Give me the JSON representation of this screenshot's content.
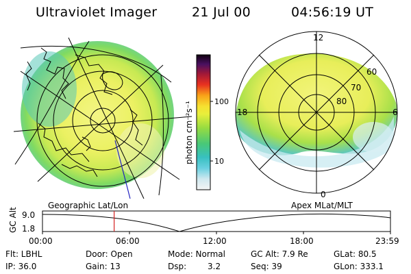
{
  "header": {
    "title": "Ultraviolet Imager",
    "date": "21 Jul 00",
    "time": "04:56:19 UT"
  },
  "colorbar": {
    "title": "photon cm⁻²s⁻¹",
    "ticks": [
      "100",
      "10"
    ]
  },
  "left_panel": {
    "label": "Geographic Lat/Lon"
  },
  "right_panel": {
    "label": "Apex MLat/MLT",
    "mlt_labels": {
      "top": "12",
      "left": "18",
      "right": "6",
      "bottom": "0"
    },
    "lat_labels": [
      "60",
      "70",
      "80"
    ]
  },
  "altitude_plot": {
    "ylabel": "GC Alt",
    "y_max": "9.0",
    "y_min": "1.8",
    "x_ticks": [
      "00:00",
      "06:00",
      "12:00",
      "18:00",
      "23:59"
    ],
    "marker_time_hours": 4.94
  },
  "info": {
    "filter": "Flt: LBHL",
    "ip": "IP: 36.0",
    "door": "Door: Open",
    "gain": "Gain: 13",
    "mode": "Mode: Normal",
    "dsp_label": "Dsp:",
    "dsp_value": "3.2",
    "gc_alt": "GC Alt: 7.9 Re",
    "seq": "Seq: 39",
    "glat": "GLat: 80.5",
    "glon": "GLon: 333.1"
  },
  "colors": {
    "marker": "#d42020",
    "map_lines": "#000000",
    "meridian_blue": "#2020c0"
  }
}
